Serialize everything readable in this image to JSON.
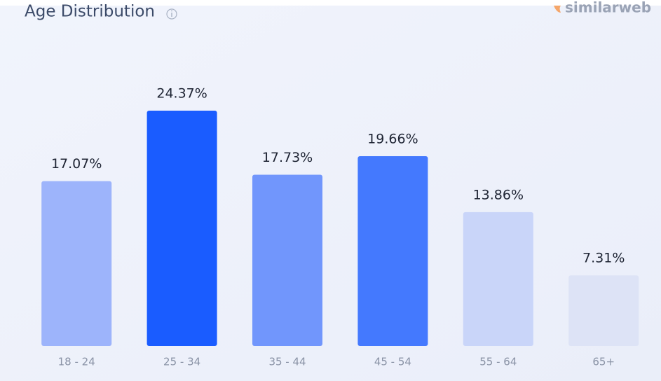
{
  "chart_data": {
    "type": "bar",
    "title": "Age Distribution",
    "brand": "similarweb",
    "categories": [
      "18 - 24",
      "25 - 34",
      "35 - 44",
      "45 - 54",
      "55 - 64",
      "65+"
    ],
    "values": [
      17.07,
      24.37,
      17.73,
      19.66,
      13.86,
      7.31
    ],
    "value_labels": [
      "17.07%",
      "24.37%",
      "17.73%",
      "19.66%",
      "13.86%",
      "7.31%"
    ],
    "colors": [
      "#9db4fb",
      "#1a5cff",
      "#7196fc",
      "#4479fe",
      "#c9d5f9",
      "#dde3f6"
    ]
  }
}
